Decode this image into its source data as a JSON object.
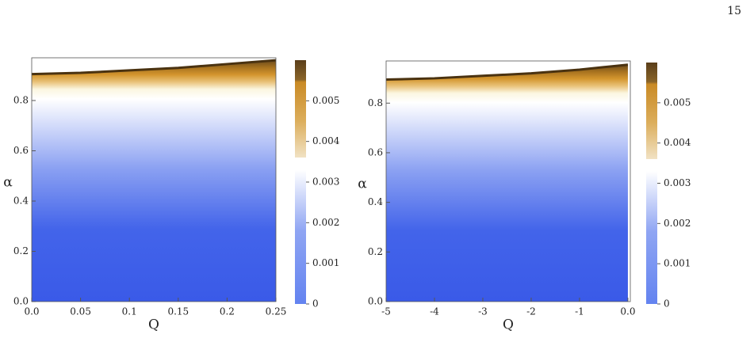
{
  "page_number": "15",
  "chart_data": [
    {
      "type": "density",
      "x_label": "Q",
      "y_label": "α",
      "xlim": [
        0,
        0.25
      ],
      "ylim": [
        0,
        0.97
      ],
      "xticks": [
        {
          "value": 0,
          "label": "0.0"
        },
        0.05,
        0.1,
        0.15,
        0.2,
        0.25
      ],
      "yticks": [
        {
          "value": 0,
          "label": "0.0"
        },
        0.2,
        0.4,
        0.6,
        0.8
      ],
      "boundary": {
        "x": [
          0,
          0.05,
          0.1,
          0.15,
          0.2,
          0.25
        ],
        "y": [
          0.905,
          0.91,
          0.92,
          0.93,
          0.945,
          0.96
        ]
      },
      "colorbar_lim": [
        0,
        0.006
      ],
      "colorbar_ticks": [
        0,
        0.001,
        0.002,
        0.003,
        0.004,
        0.005
      ]
    },
    {
      "type": "density",
      "x_label": "Q",
      "y_label": "α",
      "xlim": [
        -5,
        0.05
      ],
      "ylim": [
        0,
        0.97
      ],
      "xticks": [
        -5,
        -4,
        -3,
        -2,
        -1,
        {
          "value": 0,
          "label": "0.0"
        }
      ],
      "yticks": [
        {
          "value": 0,
          "label": "0.0"
        },
        0.2,
        0.4,
        0.6,
        0.8
      ],
      "boundary": {
        "x": [
          -5,
          -4,
          -3,
          -2,
          -1,
          0
        ],
        "y": [
          0.895,
          0.9,
          0.91,
          0.92,
          0.935,
          0.955
        ]
      },
      "colorbar_lim": [
        0,
        0.006
      ],
      "colorbar_ticks": [
        0,
        0.001,
        0.002,
        0.003,
        0.004,
        0.005
      ]
    }
  ]
}
